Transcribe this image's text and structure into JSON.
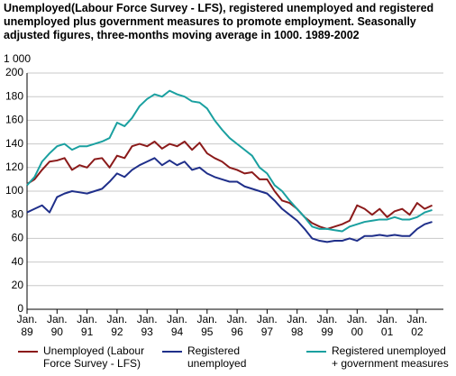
{
  "chart_data": {
    "type": "line",
    "title": "Unemployed(Labour Force Survey - LFS), registered unemployed and registered unemployed plus government measures to promote employment. Seasonally adjusted figures, three-months moving average in 1000. 1989-2002",
    "y_label": "1 000",
    "categories": [
      "Jan.\n89",
      null,
      null,
      null,
      "Jan.\n90",
      null,
      null,
      null,
      "Jan.\n91",
      null,
      null,
      null,
      "Jan.\n92",
      null,
      null,
      null,
      "Jan.\n93",
      null,
      null,
      null,
      "Jan.\n94",
      null,
      null,
      null,
      "Jan.\n95",
      null,
      null,
      null,
      "Jan.\n96",
      null,
      null,
      null,
      "Jan.\n97",
      null,
      null,
      null,
      "Jan.\n98",
      null,
      null,
      null,
      "Jan.\n99",
      null,
      null,
      null,
      "Jan.\n00",
      null,
      null,
      null,
      "Jan.\n01",
      null,
      null,
      null,
      "Jan.\n02",
      null,
      null
    ],
    "series": [
      {
        "name": "Unemployed (Labour\nForce Survey - LFS)",
        "color": "#8b1a1a",
        "values": [
          106,
          110,
          118,
          125,
          126,
          128,
          118,
          122,
          120,
          127,
          128,
          120,
          130,
          128,
          138,
          140,
          138,
          142,
          136,
          140,
          138,
          142,
          135,
          141,
          132,
          128,
          125,
          120,
          118,
          115,
          116,
          110,
          110,
          100,
          92,
          90,
          85,
          78,
          73,
          70,
          68,
          70,
          72,
          75,
          88,
          85,
          80,
          85,
          78,
          83,
          85,
          80,
          90,
          85,
          88
        ]
      },
      {
        "name": "Registered\nunemployed",
        "color": "#1f2f8a",
        "values": [
          82,
          85,
          88,
          82,
          95,
          98,
          100,
          99,
          98,
          100,
          102,
          108,
          115,
          112,
          118,
          122,
          125,
          128,
          122,
          126,
          122,
          125,
          118,
          120,
          115,
          112,
          110,
          108,
          108,
          104,
          102,
          100,
          98,
          92,
          85,
          80,
          75,
          68,
          60,
          58,
          57,
          58,
          58,
          60,
          58,
          62,
          62,
          63,
          62,
          63,
          62,
          62,
          68,
          72,
          74
        ]
      },
      {
        "name": "Registered unemployed\n+ government measures",
        "color": "#1aa0a0",
        "values": [
          105,
          112,
          125,
          132,
          138,
          140,
          135,
          138,
          138,
          140,
          142,
          145,
          158,
          155,
          162,
          172,
          178,
          182,
          180,
          185,
          182,
          180,
          176,
          175,
          170,
          160,
          152,
          145,
          140,
          135,
          130,
          120,
          115,
          105,
          100,
          92,
          85,
          78,
          70,
          68,
          68,
          67,
          66,
          70,
          72,
          74,
          75,
          76,
          76,
          78,
          76,
          76,
          78,
          82,
          84
        ]
      }
    ],
    "ylim": [
      0,
      200
    ],
    "yticks": [
      0,
      20,
      40,
      60,
      80,
      100,
      120,
      140,
      160,
      180,
      200
    ],
    "grid": true
  }
}
